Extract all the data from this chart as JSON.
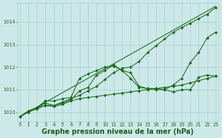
{
  "title": "Graphe pression niveau de la mer (hPa)",
  "series": [
    {
      "name": "line_straight",
      "x": [
        0,
        23
      ],
      "y": [
        1009.8,
        1014.7
      ],
      "color": "#1a6b1a",
      "marker": null,
      "markersize": 0,
      "linewidth": 0.8
    },
    {
      "name": "line_high",
      "x": [
        0,
        1,
        2,
        3,
        4,
        5,
        6,
        7,
        8,
        9,
        10,
        11,
        12,
        13,
        14,
        15,
        16,
        17,
        18,
        19,
        20,
        21,
        22,
        23
      ],
      "y": [
        1009.8,
        1010.05,
        1010.2,
        1010.5,
        1010.5,
        1010.6,
        1010.65,
        1011.5,
        1011.7,
        1011.85,
        1012.0,
        1012.05,
        1011.85,
        1011.75,
        1011.15,
        1011.05,
        1011.05,
        1011.0,
        1011.2,
        1011.5,
        1012.2,
        1012.65,
        1013.3,
        1013.55
      ],
      "color": "#1a6b1a",
      "marker": "D",
      "markersize": 2.0,
      "linewidth": 0.8
    },
    {
      "name": "line_mid",
      "x": [
        0,
        1,
        2,
        3,
        4,
        5,
        6,
        7,
        8,
        9,
        10,
        11,
        12,
        13,
        14,
        15,
        16,
        17,
        18,
        19,
        20,
        21,
        22,
        23
      ],
      "y": [
        1009.8,
        1010.05,
        1010.2,
        1010.4,
        1010.3,
        1010.4,
        1010.55,
        1010.95,
        1011.1,
        1011.65,
        1011.85,
        1012.1,
        1011.85,
        1011.5,
        1011.1,
        1011.05,
        1011.0,
        1011.0,
        1010.9,
        1011.0,
        1011.0,
        1011.55,
        1011.65,
        1011.6
      ],
      "color": "#1a6b1a",
      "marker": "D",
      "markersize": 2.0,
      "linewidth": 0.8
    },
    {
      "name": "line_low",
      "x": [
        0,
        1,
        2,
        3,
        4,
        5,
        6,
        7,
        8,
        9,
        10,
        11,
        12,
        13,
        14,
        15,
        16,
        17,
        18,
        19,
        20,
        21,
        22,
        23
      ],
      "y": [
        1009.8,
        1010.0,
        1010.15,
        1010.3,
        1010.25,
        1010.35,
        1010.5,
        1010.6,
        1010.65,
        1010.7,
        1010.75,
        1010.8,
        1010.85,
        1010.9,
        1010.95,
        1011.0,
        1011.05,
        1011.1,
        1011.15,
        1011.2,
        1011.3,
        1011.4,
        1011.5,
        1011.6
      ],
      "color": "#1a6b1a",
      "marker": "D",
      "markersize": 2.0,
      "linewidth": 0.8
    },
    {
      "name": "line_top",
      "x": [
        0,
        1,
        2,
        3,
        4,
        5,
        6,
        7,
        8,
        9,
        10,
        11,
        12,
        13,
        14,
        15,
        16,
        17,
        18,
        19,
        20,
        21,
        22,
        23
      ],
      "y": [
        1009.8,
        1010.05,
        1010.2,
        1010.3,
        1010.3,
        1010.45,
        1010.6,
        1010.75,
        1010.95,
        1011.15,
        1011.45,
        1011.75,
        1011.95,
        1012.0,
        1012.25,
        1012.65,
        1012.95,
        1013.25,
        1013.55,
        1013.75,
        1013.95,
        1014.15,
        1014.35,
        1014.65
      ],
      "color": "#1a6b1a",
      "marker": "D",
      "markersize": 2.0,
      "linewidth": 0.8
    }
  ],
  "ylim": [
    1009.6,
    1014.85
  ],
  "yticks": [
    1010,
    1011,
    1012,
    1013,
    1014
  ],
  "xlim": [
    -0.3,
    23.3
  ],
  "xticks": [
    0,
    1,
    2,
    3,
    4,
    5,
    6,
    7,
    8,
    9,
    10,
    11,
    12,
    13,
    14,
    15,
    16,
    17,
    18,
    19,
    20,
    21,
    22,
    23
  ],
  "bg_color": "#cce8e8",
  "grid_color": "#aacece",
  "text_color": "#1a6b1a",
  "title_color": "#1a5c1a",
  "title_fontsize": 7.0,
  "tick_fontsize": 5.0
}
